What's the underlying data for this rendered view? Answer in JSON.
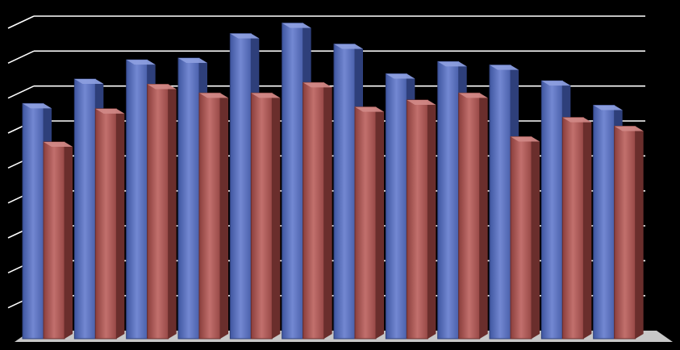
{
  "chart_data": {
    "type": "bar",
    "style": "3d-clustered-column",
    "categories": [
      "",
      "",
      "",
      "",
      "",
      "",
      "",
      "",
      "",
      "",
      "",
      ""
    ],
    "series": [
      {
        "values": [
          6.5,
          7.2,
          7.75,
          7.8,
          8.5,
          8.8,
          8.2,
          7.35,
          7.7,
          7.6,
          7.15,
          6.45
        ]
      },
      {
        "values": [
          5.4,
          6.35,
          7.05,
          6.8,
          6.8,
          7.1,
          6.4,
          6.6,
          6.8,
          5.55,
          6.1,
          5.85
        ]
      }
    ],
    "ylim": [
      0,
      9
    ],
    "grid": true,
    "legend": "none",
    "title": "",
    "xlabel": "",
    "ylabel": "",
    "colors": {
      "background": "#000000",
      "gridline": "#ffffff",
      "floor": "#c8c8c8",
      "series": [
        "#5a72c0",
        "#b05a58"
      ]
    }
  }
}
